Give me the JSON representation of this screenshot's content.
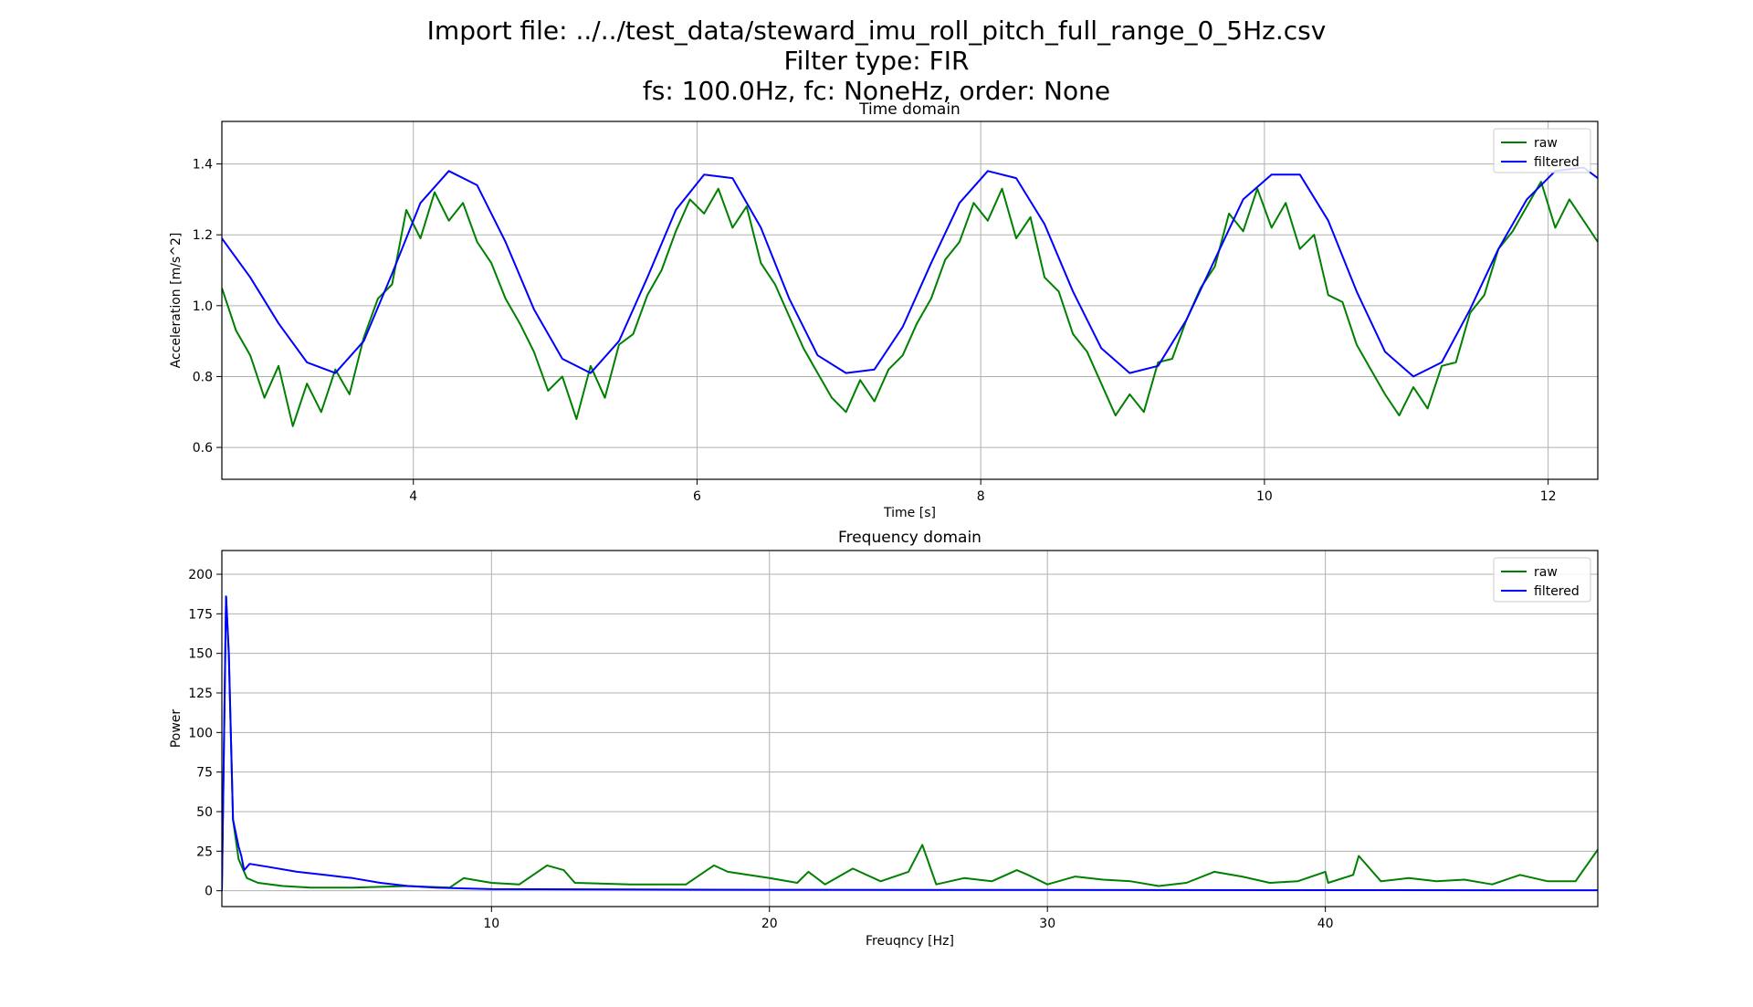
{
  "figure": {
    "title_line1": "Import file: ../../test_data/steward_imu_roll_pitch_full_range_0_5Hz.csv",
    "title_line2": "Filter type: FIR",
    "title_line3": "fs: 100.0Hz, fc: NoneHz, order: None"
  },
  "colors": {
    "raw": "#008000",
    "filtered": "#0000ff",
    "grid": "#b0b0b0"
  },
  "chart_data": [
    {
      "type": "line",
      "title": "Time domain",
      "xlabel": "Time [s]",
      "ylabel": "Acceleration [m/s^2]",
      "xlim": [
        2.65,
        12.35
      ],
      "ylim": [
        0.51,
        1.52
      ],
      "xticks": [
        4,
        6,
        8,
        10,
        12
      ],
      "yticks": [
        0.6,
        0.8,
        1.0,
        1.2,
        1.4
      ],
      "xtick_labels": [
        "4",
        "6",
        "8",
        "10",
        "12"
      ],
      "ytick_labels": [
        "0.6",
        "0.8",
        "1.0",
        "1.2",
        "1.4"
      ],
      "grid": true,
      "legend_position": "top-right",
      "series": [
        {
          "name": "raw",
          "color": "#008000",
          "x": [
            2.65,
            2.75,
            2.85,
            2.95,
            3.05,
            3.15,
            3.25,
            3.35,
            3.45,
            3.55,
            3.65,
            3.75,
            3.85,
            3.95,
            4.05,
            4.15,
            4.25,
            4.35,
            4.45,
            4.55,
            4.65,
            4.75,
            4.85,
            4.95,
            5.05,
            5.15,
            5.25,
            5.35,
            5.45,
            5.55,
            5.65,
            5.75,
            5.85,
            5.95,
            6.05,
            6.15,
            6.25,
            6.35,
            6.45,
            6.55,
            6.65,
            6.75,
            6.85,
            6.95,
            7.05,
            7.15,
            7.25,
            7.35,
            7.45,
            7.55,
            7.65,
            7.75,
            7.85,
            7.95,
            8.05,
            8.15,
            8.25,
            8.35,
            8.45,
            8.55,
            8.65,
            8.75,
            8.85,
            8.95,
            9.05,
            9.15,
            9.25,
            9.35,
            9.45,
            9.55,
            9.65,
            9.75,
            9.85,
            9.95,
            10.05,
            10.15,
            10.25,
            10.35,
            10.45,
            10.55,
            10.65,
            10.75,
            10.85,
            10.95,
            11.05,
            11.15,
            11.25,
            11.35,
            11.45,
            11.55,
            11.65,
            11.75,
            11.85,
            11.95,
            12.05,
            12.15,
            12.25,
            12.35
          ],
          "values": [
            1.05,
            0.93,
            0.86,
            0.74,
            0.83,
            0.66,
            0.78,
            0.7,
            0.82,
            0.75,
            0.91,
            1.02,
            1.06,
            1.27,
            1.19,
            1.32,
            1.24,
            1.29,
            1.18,
            1.12,
            1.02,
            0.95,
            0.87,
            0.76,
            0.8,
            0.68,
            0.83,
            0.74,
            0.89,
            0.92,
            1.03,
            1.1,
            1.21,
            1.3,
            1.26,
            1.33,
            1.22,
            1.28,
            1.12,
            1.06,
            0.97,
            0.88,
            0.81,
            0.74,
            0.7,
            0.79,
            0.73,
            0.82,
            0.86,
            0.95,
            1.02,
            1.13,
            1.18,
            1.29,
            1.24,
            1.33,
            1.19,
            1.25,
            1.08,
            1.04,
            0.92,
            0.87,
            0.78,
            0.69,
            0.75,
            0.7,
            0.84,
            0.85,
            0.96,
            1.05,
            1.11,
            1.26,
            1.21,
            1.33,
            1.22,
            1.29,
            1.16,
            1.2,
            1.03,
            1.01,
            0.89,
            0.82,
            0.75,
            0.69,
            0.77,
            0.71,
            0.83,
            0.84,
            0.98,
            1.03,
            1.16,
            1.21,
            1.28,
            1.35,
            1.22,
            1.3,
            1.24,
            1.18
          ]
        },
        {
          "name": "filtered",
          "color": "#0000ff",
          "x": [
            2.65,
            2.85,
            3.05,
            3.25,
            3.45,
            3.65,
            3.85,
            4.05,
            4.25,
            4.45,
            4.65,
            4.85,
            5.05,
            5.25,
            5.45,
            5.65,
            5.85,
            6.05,
            6.25,
            6.45,
            6.65,
            6.85,
            7.05,
            7.25,
            7.45,
            7.65,
            7.85,
            8.05,
            8.25,
            8.45,
            8.65,
            8.85,
            9.05,
            9.25,
            9.45,
            9.65,
            9.85,
            10.05,
            10.25,
            10.45,
            10.65,
            10.85,
            11.05,
            11.25,
            11.45,
            11.65,
            11.85,
            12.05,
            12.25,
            12.35
          ],
          "values": [
            1.19,
            1.08,
            0.95,
            0.84,
            0.81,
            0.9,
            1.09,
            1.29,
            1.38,
            1.34,
            1.18,
            0.99,
            0.85,
            0.81,
            0.9,
            1.08,
            1.27,
            1.37,
            1.36,
            1.22,
            1.02,
            0.86,
            0.81,
            0.82,
            0.94,
            1.12,
            1.29,
            1.38,
            1.36,
            1.23,
            1.04,
            0.88,
            0.81,
            0.83,
            0.96,
            1.13,
            1.3,
            1.37,
            1.37,
            1.24,
            1.04,
            0.87,
            0.8,
            0.84,
            0.99,
            1.16,
            1.3,
            1.38,
            1.39,
            1.36
          ]
        }
      ]
    },
    {
      "type": "line",
      "title": "Frequency domain",
      "xlabel": "Freuqncy [Hz]",
      "ylabel": "Power",
      "xlim": [
        0.3,
        49.8
      ],
      "ylim": [
        -10,
        215
      ],
      "xticks": [
        10,
        20,
        30,
        40
      ],
      "yticks": [
        0,
        25,
        50,
        75,
        100,
        125,
        150,
        175,
        200
      ],
      "xtick_labels": [
        "10",
        "20",
        "30",
        "40"
      ],
      "ytick_labels": [
        "0",
        "25",
        "50",
        "75",
        "100",
        "125",
        "150",
        "175",
        "200"
      ],
      "grid": true,
      "legend_position": "top-right",
      "series": [
        {
          "name": "raw",
          "color": "#008000",
          "x": [
            0.3,
            0.45,
            0.55,
            0.7,
            0.9,
            1.2,
            1.6,
            2.5,
            3.5,
            5,
            7,
            8.5,
            9,
            10,
            11,
            12,
            12.6,
            13,
            15,
            17,
            18,
            18.5,
            20,
            21,
            21.4,
            22,
            23,
            24,
            25,
            25.5,
            26,
            27,
            28,
            28.9,
            29.3,
            30,
            31,
            32,
            33,
            34,
            35,
            36,
            37,
            38,
            39,
            40,
            40.1,
            41,
            41.2,
            42,
            43,
            44,
            45,
            46,
            47,
            48,
            49,
            49.8
          ],
          "values": [
            0,
            186,
            150,
            45,
            20,
            8,
            5,
            3,
            2,
            2,
            3,
            2,
            8,
            5,
            4,
            16,
            13,
            5,
            4,
            4,
            16,
            12,
            8,
            5,
            12,
            4,
            14,
            6,
            12,
            29,
            4,
            8,
            6,
            13,
            10,
            4,
            9,
            7,
            6,
            3,
            5,
            12,
            9,
            5,
            6,
            12,
            5,
            10,
            22,
            6,
            8,
            6,
            7,
            4,
            10,
            6,
            6,
            26
          ]
        },
        {
          "name": "filtered",
          "color": "#0000ff",
          "x": [
            0.3,
            0.45,
            0.55,
            0.7,
            0.9,
            1.0,
            1.1,
            1.3,
            2,
            3,
            4,
            5,
            6,
            7,
            8,
            9,
            10,
            15,
            20,
            30,
            40,
            49.8
          ],
          "values": [
            0,
            186,
            150,
            45,
            28,
            22,
            13,
            17,
            15,
            12,
            10,
            8,
            5,
            3,
            2,
            1.5,
            1,
            0.8,
            0.6,
            0.5,
            0.4,
            0.3
          ]
        }
      ]
    }
  ]
}
